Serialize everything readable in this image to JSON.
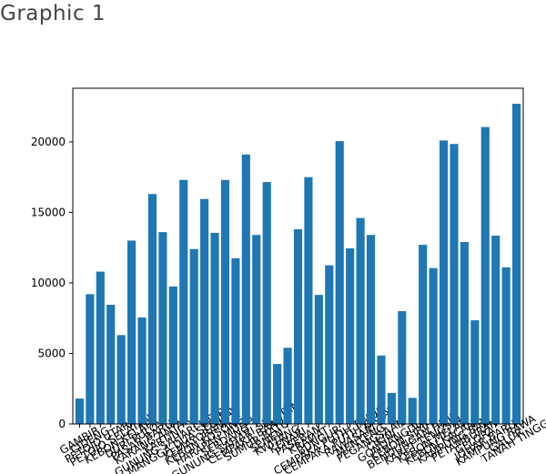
{
  "title": "Graphic 1",
  "chart_data": {
    "type": "bar",
    "categories": [
      "GAMBIR",
      "CIDENG",
      "PETOJO UTARA",
      "PETOJO SELATAN",
      "KEBON KELAPA",
      "DURI PULO",
      "PASAR BARU",
      "KARANG ANYAR",
      "KARTINI",
      "GUNUNG SAHARI UTARA",
      "MANGGA DUA SELATAN",
      "KEMAYORAN",
      "KEBON KOSONG",
      "HARAPAN MULIA",
      "SERDANG",
      "GUNUNG SAHARI SELATAN",
      "CEMPAKA BARU",
      "SUMUR BATU",
      "SENEN",
      "KWITANG",
      "KENARI",
      "PASEBAN",
      "KRAMAT",
      "BUNGUR",
      "CEMPAKA PUTIH TIMUR",
      "CEMPAKA PUTIH BARAT",
      "RAWASARI",
      "MENTENG",
      "PEGANGSAAN",
      "CIKINI",
      "GONDANGDIA",
      "KEBON SIRIH",
      "BENDUNGAN HILIR",
      "KARET TENGSIN",
      "KEBON MELATI",
      "KEBON KACANG",
      "KAMPUNG BALI",
      "PETAMBURAN",
      "GELORA",
      "JOHAR BARU",
      "KAMPUNG RAWA",
      "GALUR",
      "TANAH TINGGI"
    ],
    "values": [
      1800,
      9200,
      10800,
      8450,
      6300,
      13000,
      7550,
      16300,
      13600,
      9750,
      17300,
      12400,
      15950,
      13550,
      17300,
      11750,
      19100,
      13400,
      17150,
      4250,
      5400,
      13800,
      17500,
      9150,
      11250,
      20050,
      12450,
      14600,
      13400,
      4850,
      2200,
      8000,
      1850,
      12700,
      11050,
      20100,
      19850,
      12900,
      7350,
      21050,
      13350,
      11100,
      22700
    ],
    "color": "#1f77b4",
    "ylim": [
      0,
      23800
    ],
    "yticks": [
      0,
      5000,
      10000,
      15000,
      20000
    ]
  }
}
